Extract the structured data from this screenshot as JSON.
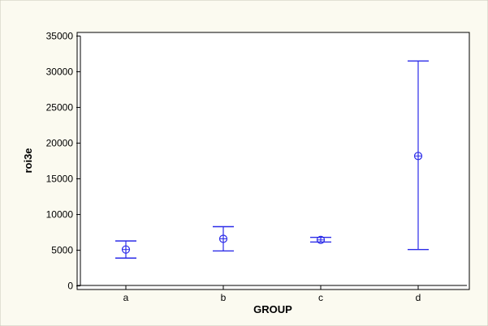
{
  "chart_data": {
    "type": "interval",
    "xlabel": "GROUP",
    "ylabel": "roi3e",
    "categories": [
      "a",
      "b",
      "c",
      "d"
    ],
    "ylim": [
      -500,
      35500
    ],
    "yticks": [
      0,
      5000,
      10000,
      15000,
      20000,
      25000,
      30000,
      35000
    ],
    "series": [
      {
        "mean": [
          5100,
          6600,
          6450,
          18200
        ],
        "lower": [
          3900,
          4900,
          6150,
          5100
        ],
        "upper": [
          6300,
          8300,
          6800,
          31500
        ]
      }
    ],
    "colors": {
      "figure_bg": "#fbfaf0",
      "plot_bg": "#ffffff",
      "series": "#2b2be8",
      "axis": "#000000"
    }
  }
}
